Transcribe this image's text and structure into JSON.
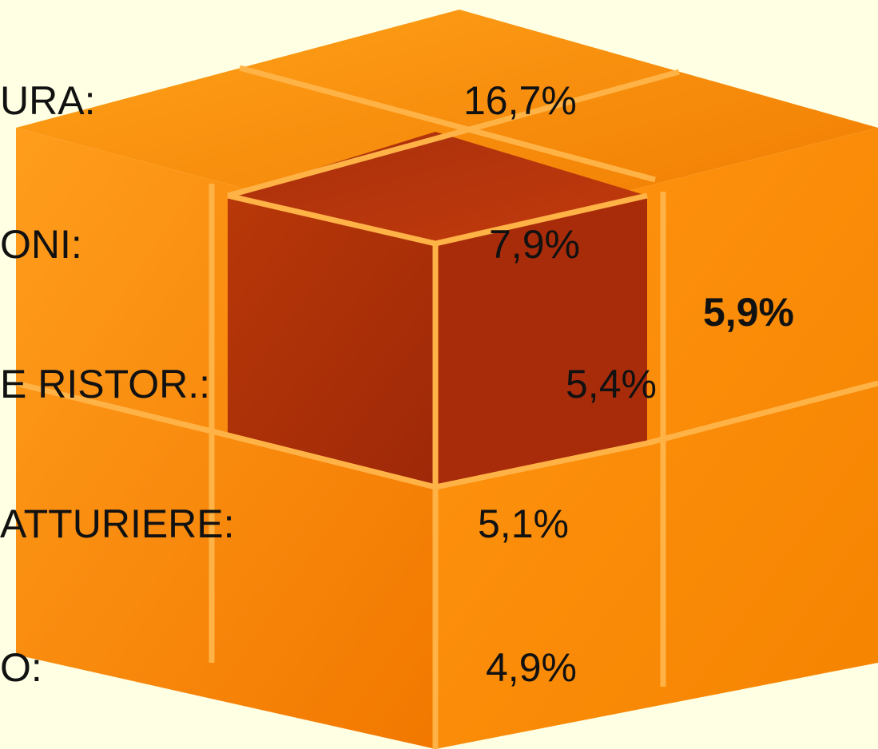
{
  "rows": [
    {
      "label": "URA:",
      "value": "16,7%"
    },
    {
      "label": "ONI:",
      "value": "7,9%"
    },
    {
      "label": "E RISTOR.:",
      "value": "5,4%"
    },
    {
      "label": "ATTURIERE:",
      "value": "5,1%"
    },
    {
      "label": "O:",
      "value": "4,9%"
    }
  ],
  "highlight": "5,9%"
}
